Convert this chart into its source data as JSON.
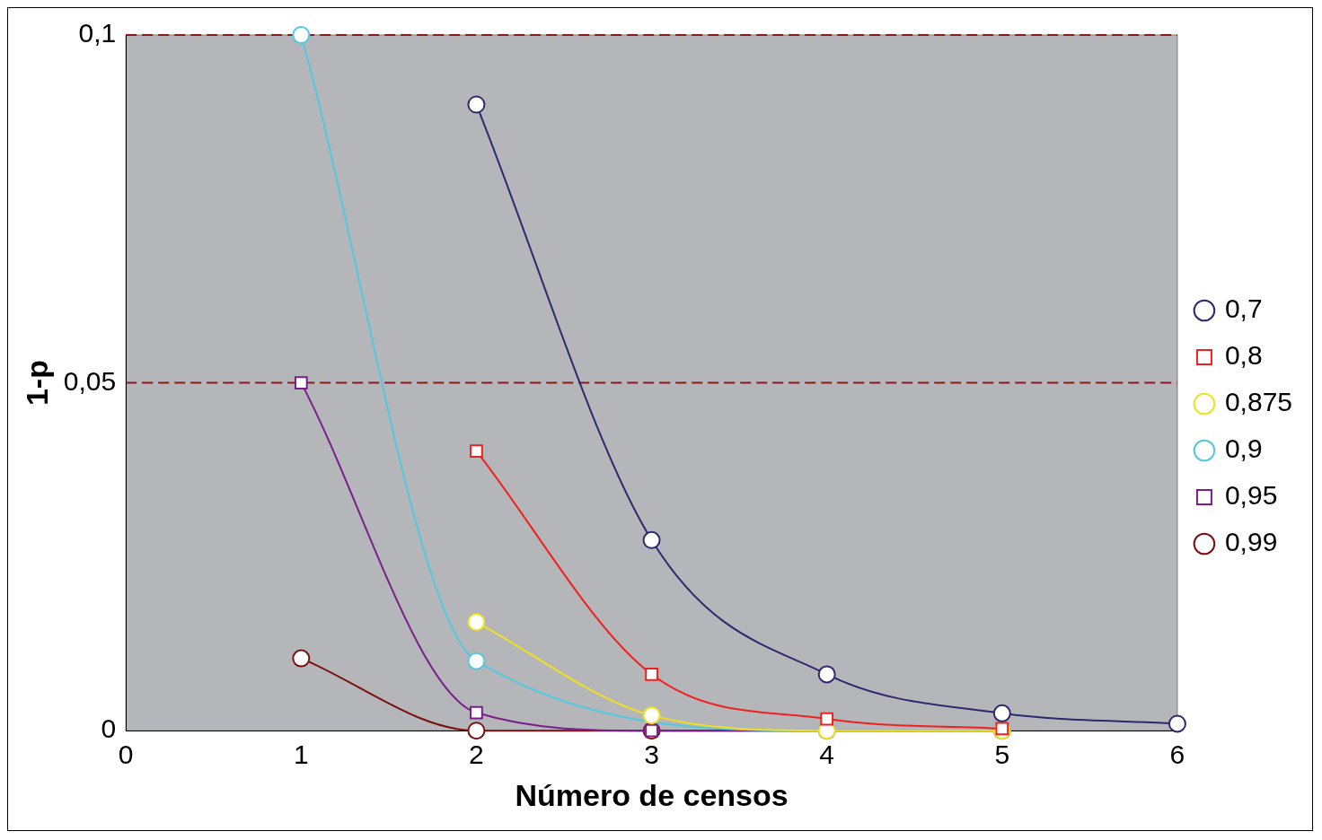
{
  "chart_data": {
    "type": "line",
    "xlabel": "Número de censos",
    "ylabel": "1-p",
    "x": [
      1,
      2,
      3,
      4,
      5,
      6
    ],
    "xlim": [
      0,
      6
    ],
    "xticks": [
      0,
      1,
      2,
      3,
      4,
      5,
      6
    ],
    "ylim": [
      0,
      0.1
    ],
    "yticks": [
      {
        "value": 0,
        "label": "0"
      },
      {
        "value": 0.05,
        "label": "0,05"
      },
      {
        "value": 0.1,
        "label": "0,1"
      }
    ],
    "grid": false,
    "legend": "right",
    "ref_lines": [
      {
        "axis": "y",
        "value": 0.05,
        "color": "#8b1a1a",
        "line_style": "dashed"
      },
      {
        "axis": "y",
        "value": 0.1,
        "color": "#8b1a1a",
        "line_style": "dashed"
      }
    ],
    "series": [
      {
        "name": "0,7",
        "color": "#2b2a6e",
        "marker": "circle",
        "values": [
          null,
          0.09,
          0.0274,
          0.0081,
          0.0025,
          0.001
        ]
      },
      {
        "name": "0,8",
        "color": "#f02020",
        "marker": "square",
        "values": [
          null,
          0.0402,
          0.0081,
          0.0017,
          0.0003,
          null
        ]
      },
      {
        "name": "0,875",
        "color": "#f0e020",
        "marker": "circle",
        "values": [
          null,
          0.0156,
          0.0022,
          0,
          0,
          null
        ]
      },
      {
        "name": "0,9",
        "color": "#50c8e0",
        "marker": "circle",
        "values": [
          0.1,
          0.01,
          null,
          0,
          0,
          null
        ]
      },
      {
        "name": "0,95",
        "color": "#7a1f8a",
        "marker": "square",
        "values": [
          0.05,
          0.0026,
          0,
          0,
          0,
          null
        ]
      },
      {
        "name": "0,99",
        "color": "#7a1010",
        "marker": "circle",
        "values": [
          0.0104,
          0,
          0,
          0,
          0,
          null
        ]
      }
    ]
  }
}
